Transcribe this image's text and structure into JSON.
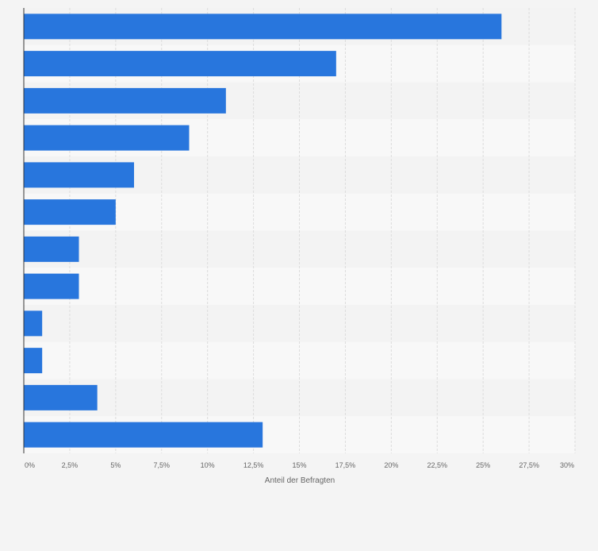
{
  "chart_data": {
    "type": "bar",
    "orientation": "horizontal",
    "categories": [
      "",
      "",
      "",
      "",
      "",
      "",
      "",
      "",
      "",
      "",
      "",
      ""
    ],
    "values": [
      26,
      17,
      11,
      9,
      6,
      5,
      3,
      3,
      1,
      1,
      4,
      13
    ],
    "xlabel": "Anteil der Befragten",
    "ylabel": "",
    "xlim": [
      0,
      30
    ],
    "ticks": [
      "0%",
      "2,5%",
      "5%",
      "7,5%",
      "10%",
      "12,5%",
      "15%",
      "17,5%",
      "20%",
      "22,5%",
      "25%",
      "27,5%",
      "30%"
    ],
    "tick_values": [
      0,
      2.5,
      5,
      7.5,
      10,
      12.5,
      15,
      17.5,
      20,
      22.5,
      25,
      27.5,
      30
    ],
    "grid": true,
    "bar_color": "#2876dd",
    "band_colors": [
      "#f3f3f3",
      "#f8f8f8"
    ],
    "gridline_color": "#dcdcdc",
    "axis_color": "#333333",
    "tick_label_color": "#666666"
  }
}
